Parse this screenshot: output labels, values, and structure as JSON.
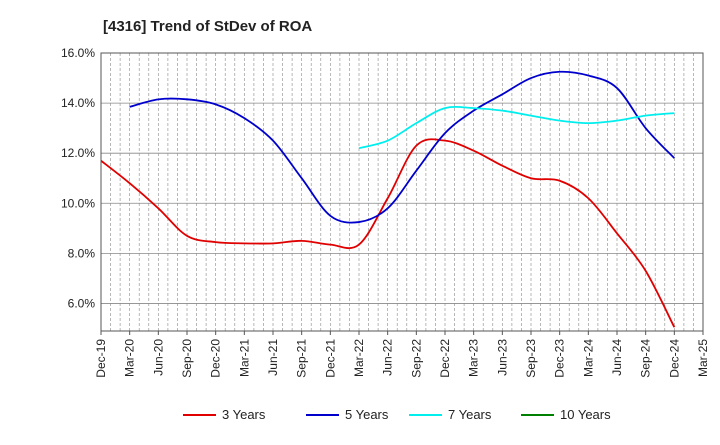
{
  "chart_data": {
    "type": "line",
    "title": "[4316]  Trend of StDev of ROA",
    "xlabel": "",
    "ylabel": "",
    "x_ticks": [
      "Dec-19",
      "Mar-20",
      "Jun-20",
      "Sep-20",
      "Dec-20",
      "Mar-21",
      "Jun-21",
      "Sep-21",
      "Dec-21",
      "Mar-22",
      "Jun-22",
      "Sep-22",
      "Dec-22",
      "Mar-23",
      "Jun-23",
      "Sep-23",
      "Dec-23",
      "Mar-24",
      "Jun-24",
      "Sep-24",
      "Dec-24",
      "Mar-25"
    ],
    "y_ticks": [
      "6.0%",
      "8.0%",
      "10.0%",
      "12.0%",
      "14.0%",
      "16.0%"
    ],
    "ylim": [
      4.9,
      16.0
    ],
    "grid": "dashed-vertical, solid-horizontal",
    "legend_position": "bottom",
    "series": [
      {
        "name": "3 Years",
        "color": "#e00000",
        "points": [
          [
            0,
            11.7
          ],
          [
            1,
            10.8
          ],
          [
            2,
            9.8
          ],
          [
            3,
            8.7
          ],
          [
            4,
            8.45
          ],
          [
            5,
            8.4
          ],
          [
            6,
            8.4
          ],
          [
            7,
            8.5
          ],
          [
            8,
            8.35
          ],
          [
            9,
            8.35
          ],
          [
            10,
            10.2
          ],
          [
            11,
            12.3
          ],
          [
            12,
            12.5
          ],
          [
            13,
            12.1
          ],
          [
            14,
            11.5
          ],
          [
            15,
            11.0
          ],
          [
            16,
            10.9
          ],
          [
            17,
            10.2
          ],
          [
            18,
            8.8
          ],
          [
            19,
            7.3
          ],
          [
            20,
            5.05
          ]
        ]
      },
      {
        "name": "5 Years",
        "color": "#0000cc",
        "points": [
          [
            1,
            13.85
          ],
          [
            2,
            14.15
          ],
          [
            3,
            14.15
          ],
          [
            4,
            13.95
          ],
          [
            5,
            13.4
          ],
          [
            6,
            12.5
          ],
          [
            7,
            11.0
          ],
          [
            8,
            9.5
          ],
          [
            9,
            9.25
          ],
          [
            10,
            9.8
          ],
          [
            11,
            11.3
          ],
          [
            12,
            12.8
          ],
          [
            13,
            13.7
          ],
          [
            14,
            14.35
          ],
          [
            15,
            15.0
          ],
          [
            16,
            15.25
          ],
          [
            17,
            15.1
          ],
          [
            18,
            14.6
          ],
          [
            19,
            13.0
          ],
          [
            20,
            11.8
          ]
        ]
      },
      {
        "name": "7 Years",
        "color": "#00eeee",
        "points": [
          [
            9,
            12.2
          ],
          [
            10,
            12.5
          ],
          [
            11,
            13.2
          ],
          [
            12,
            13.8
          ],
          [
            13,
            13.8
          ],
          [
            14,
            13.7
          ],
          [
            15,
            13.5
          ],
          [
            16,
            13.3
          ],
          [
            17,
            13.2
          ],
          [
            18,
            13.3
          ],
          [
            19,
            13.5
          ],
          [
            20,
            13.6
          ]
        ]
      },
      {
        "name": "10 Years",
        "color": "#008000",
        "points": []
      }
    ]
  }
}
